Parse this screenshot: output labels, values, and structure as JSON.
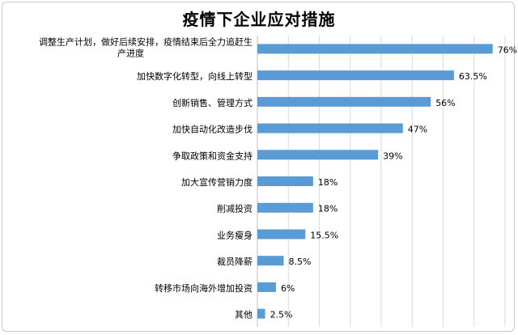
{
  "chart_data": {
    "type": "bar",
    "orientation": "horizontal",
    "title": "疫情下企业应对措施",
    "categories": [
      [
        "调整生产计划，做好后续安排，疫情结束后全力追赶生",
        "产进度"
      ],
      [
        "加快数字化转型，向线上转型"
      ],
      [
        "创新销售、管理方式"
      ],
      [
        "加快自动化改造步伐"
      ],
      [
        "争取政策和资金支持"
      ],
      [
        "加大宣传营销力度"
      ],
      [
        "削减投资"
      ],
      [
        "业务瘦身"
      ],
      [
        "裁员降薪"
      ],
      [
        "转移市场向海外增加投资"
      ],
      [
        "其他"
      ]
    ],
    "values": [
      76,
      63.5,
      56,
      47,
      39,
      18,
      18,
      15.5,
      8.5,
      6,
      2.5
    ],
    "value_labels": [
      "76%",
      "63.5%",
      "56%",
      "47%",
      "39%",
      "18%",
      "18%",
      "15.5%",
      "8.5%",
      "6%",
      "2.5%"
    ],
    "xlim": [
      0,
      80
    ],
    "grid": "vertical",
    "legend": "none",
    "bar_color": "#5b9bd5",
    "grid_color": "#d9d9d9",
    "axis_color": "#bfbfbf"
  }
}
